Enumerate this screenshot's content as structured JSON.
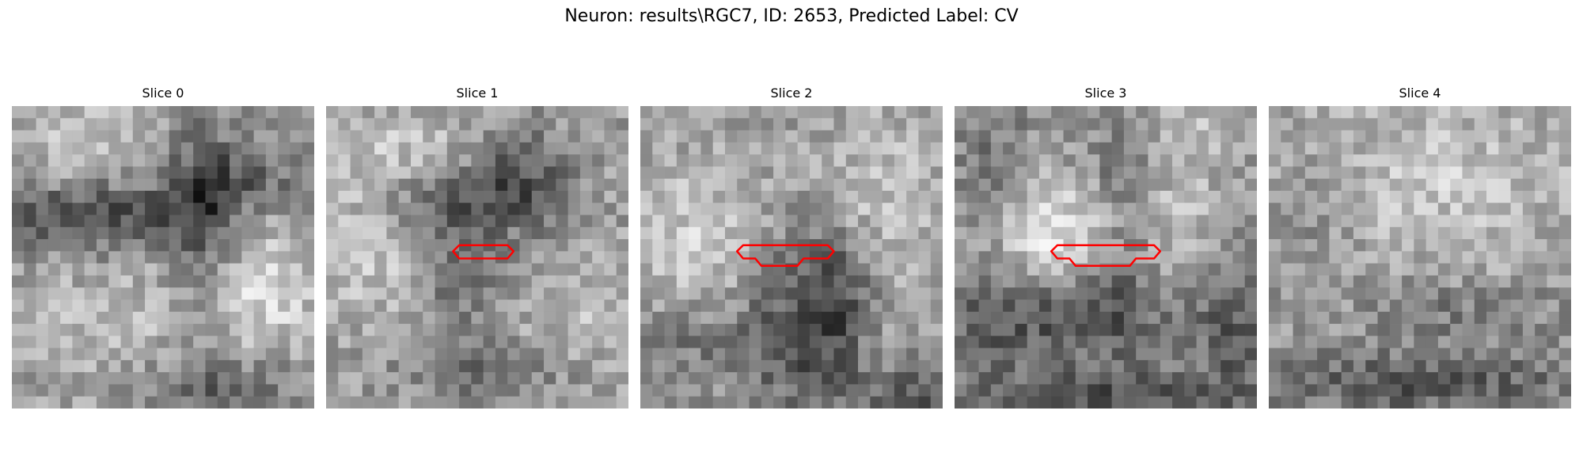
{
  "figure": {
    "title": "Neuron: results\\RGC7, ID: 2653, Predicted Label: CV"
  },
  "panels": [
    {
      "title": "Slice 0",
      "has_contour": false
    },
    {
      "title": "Slice 1",
      "has_contour": true
    },
    {
      "title": "Slice 2",
      "has_contour": true
    },
    {
      "title": "Slice 3",
      "has_contour": true
    },
    {
      "title": "Slice 4",
      "has_contour": false
    }
  ],
  "contour_color": "#ff0000",
  "image_style": "grayscale pixelated microscopy slice"
}
